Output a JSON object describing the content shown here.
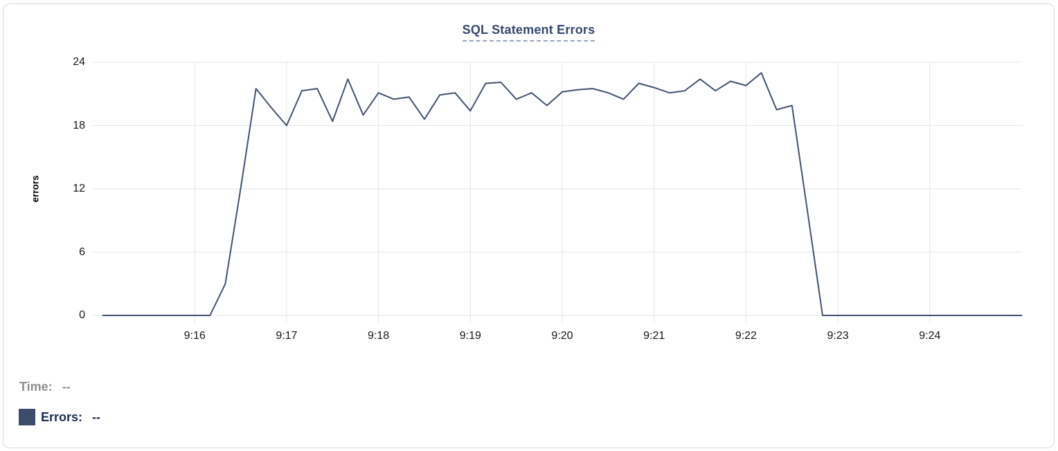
{
  "chart": {
    "title": "SQL Statement Errors",
    "ylabel": "errors"
  },
  "tooltip": {
    "time_label": "Time:",
    "time_value": "--",
    "errors_label": "Errors:",
    "errors_value": "--"
  },
  "colors": {
    "line": "#42526f",
    "swatch": "#3d4c6a",
    "grid": "#e5e5e5",
    "title": "#36486c"
  },
  "chart_data": {
    "type": "line",
    "title": "SQL Statement Errors",
    "xlabel": "",
    "ylabel": "errors",
    "ylim": [
      0,
      24
    ],
    "y_ticks": [
      0,
      6,
      12,
      18,
      24
    ],
    "x_ticks": [
      "9:16",
      "9:17",
      "9:18",
      "9:19",
      "9:20",
      "9:21",
      "9:22",
      "9:23",
      "9:24"
    ],
    "grid": true,
    "legend_position": "bottom-left",
    "series_name": "Errors",
    "x": [
      "9:15:00",
      "9:15:10",
      "9:15:20",
      "9:15:30",
      "9:15:40",
      "9:15:50",
      "9:16:00",
      "9:16:10",
      "9:16:20",
      "9:16:30",
      "9:16:40",
      "9:16:50",
      "9:17:00",
      "9:17:10",
      "9:17:20",
      "9:17:30",
      "9:17:40",
      "9:17:50",
      "9:18:00",
      "9:18:10",
      "9:18:20",
      "9:18:30",
      "9:18:40",
      "9:18:50",
      "9:19:00",
      "9:19:10",
      "9:19:20",
      "9:19:30",
      "9:19:40",
      "9:19:50",
      "9:20:00",
      "9:20:10",
      "9:20:20",
      "9:20:30",
      "9:20:40",
      "9:20:50",
      "9:21:00",
      "9:21:10",
      "9:21:20",
      "9:21:30",
      "9:21:40",
      "9:21:50",
      "9:22:00",
      "9:22:10",
      "9:22:20",
      "9:22:30",
      "9:22:40",
      "9:22:50",
      "9:23:00",
      "9:23:10",
      "9:23:20",
      "9:23:30",
      "9:23:40",
      "9:23:50",
      "9:24:00",
      "9:24:10",
      "9:24:20",
      "9:24:30",
      "9:24:40",
      "9:24:50",
      "9:25:00"
    ],
    "values": [
      0,
      0,
      0,
      0,
      0,
      0,
      0,
      0,
      3,
      12,
      21.5,
      19.7,
      18,
      21.3,
      21.5,
      18.4,
      22.4,
      19,
      21.1,
      20.5,
      20.7,
      18.6,
      20.9,
      21.1,
      19.4,
      22,
      22.1,
      20.5,
      21.1,
      19.9,
      21.2,
      21.4,
      21.5,
      21.1,
      20.5,
      22,
      21.6,
      21.1,
      21.3,
      22.4,
      21.3,
      22.2,
      21.8,
      23,
      19.5,
      19.9,
      10,
      0,
      0,
      0,
      0,
      0,
      0,
      0,
      0,
      0,
      0,
      0,
      0,
      0,
      0
    ]
  }
}
